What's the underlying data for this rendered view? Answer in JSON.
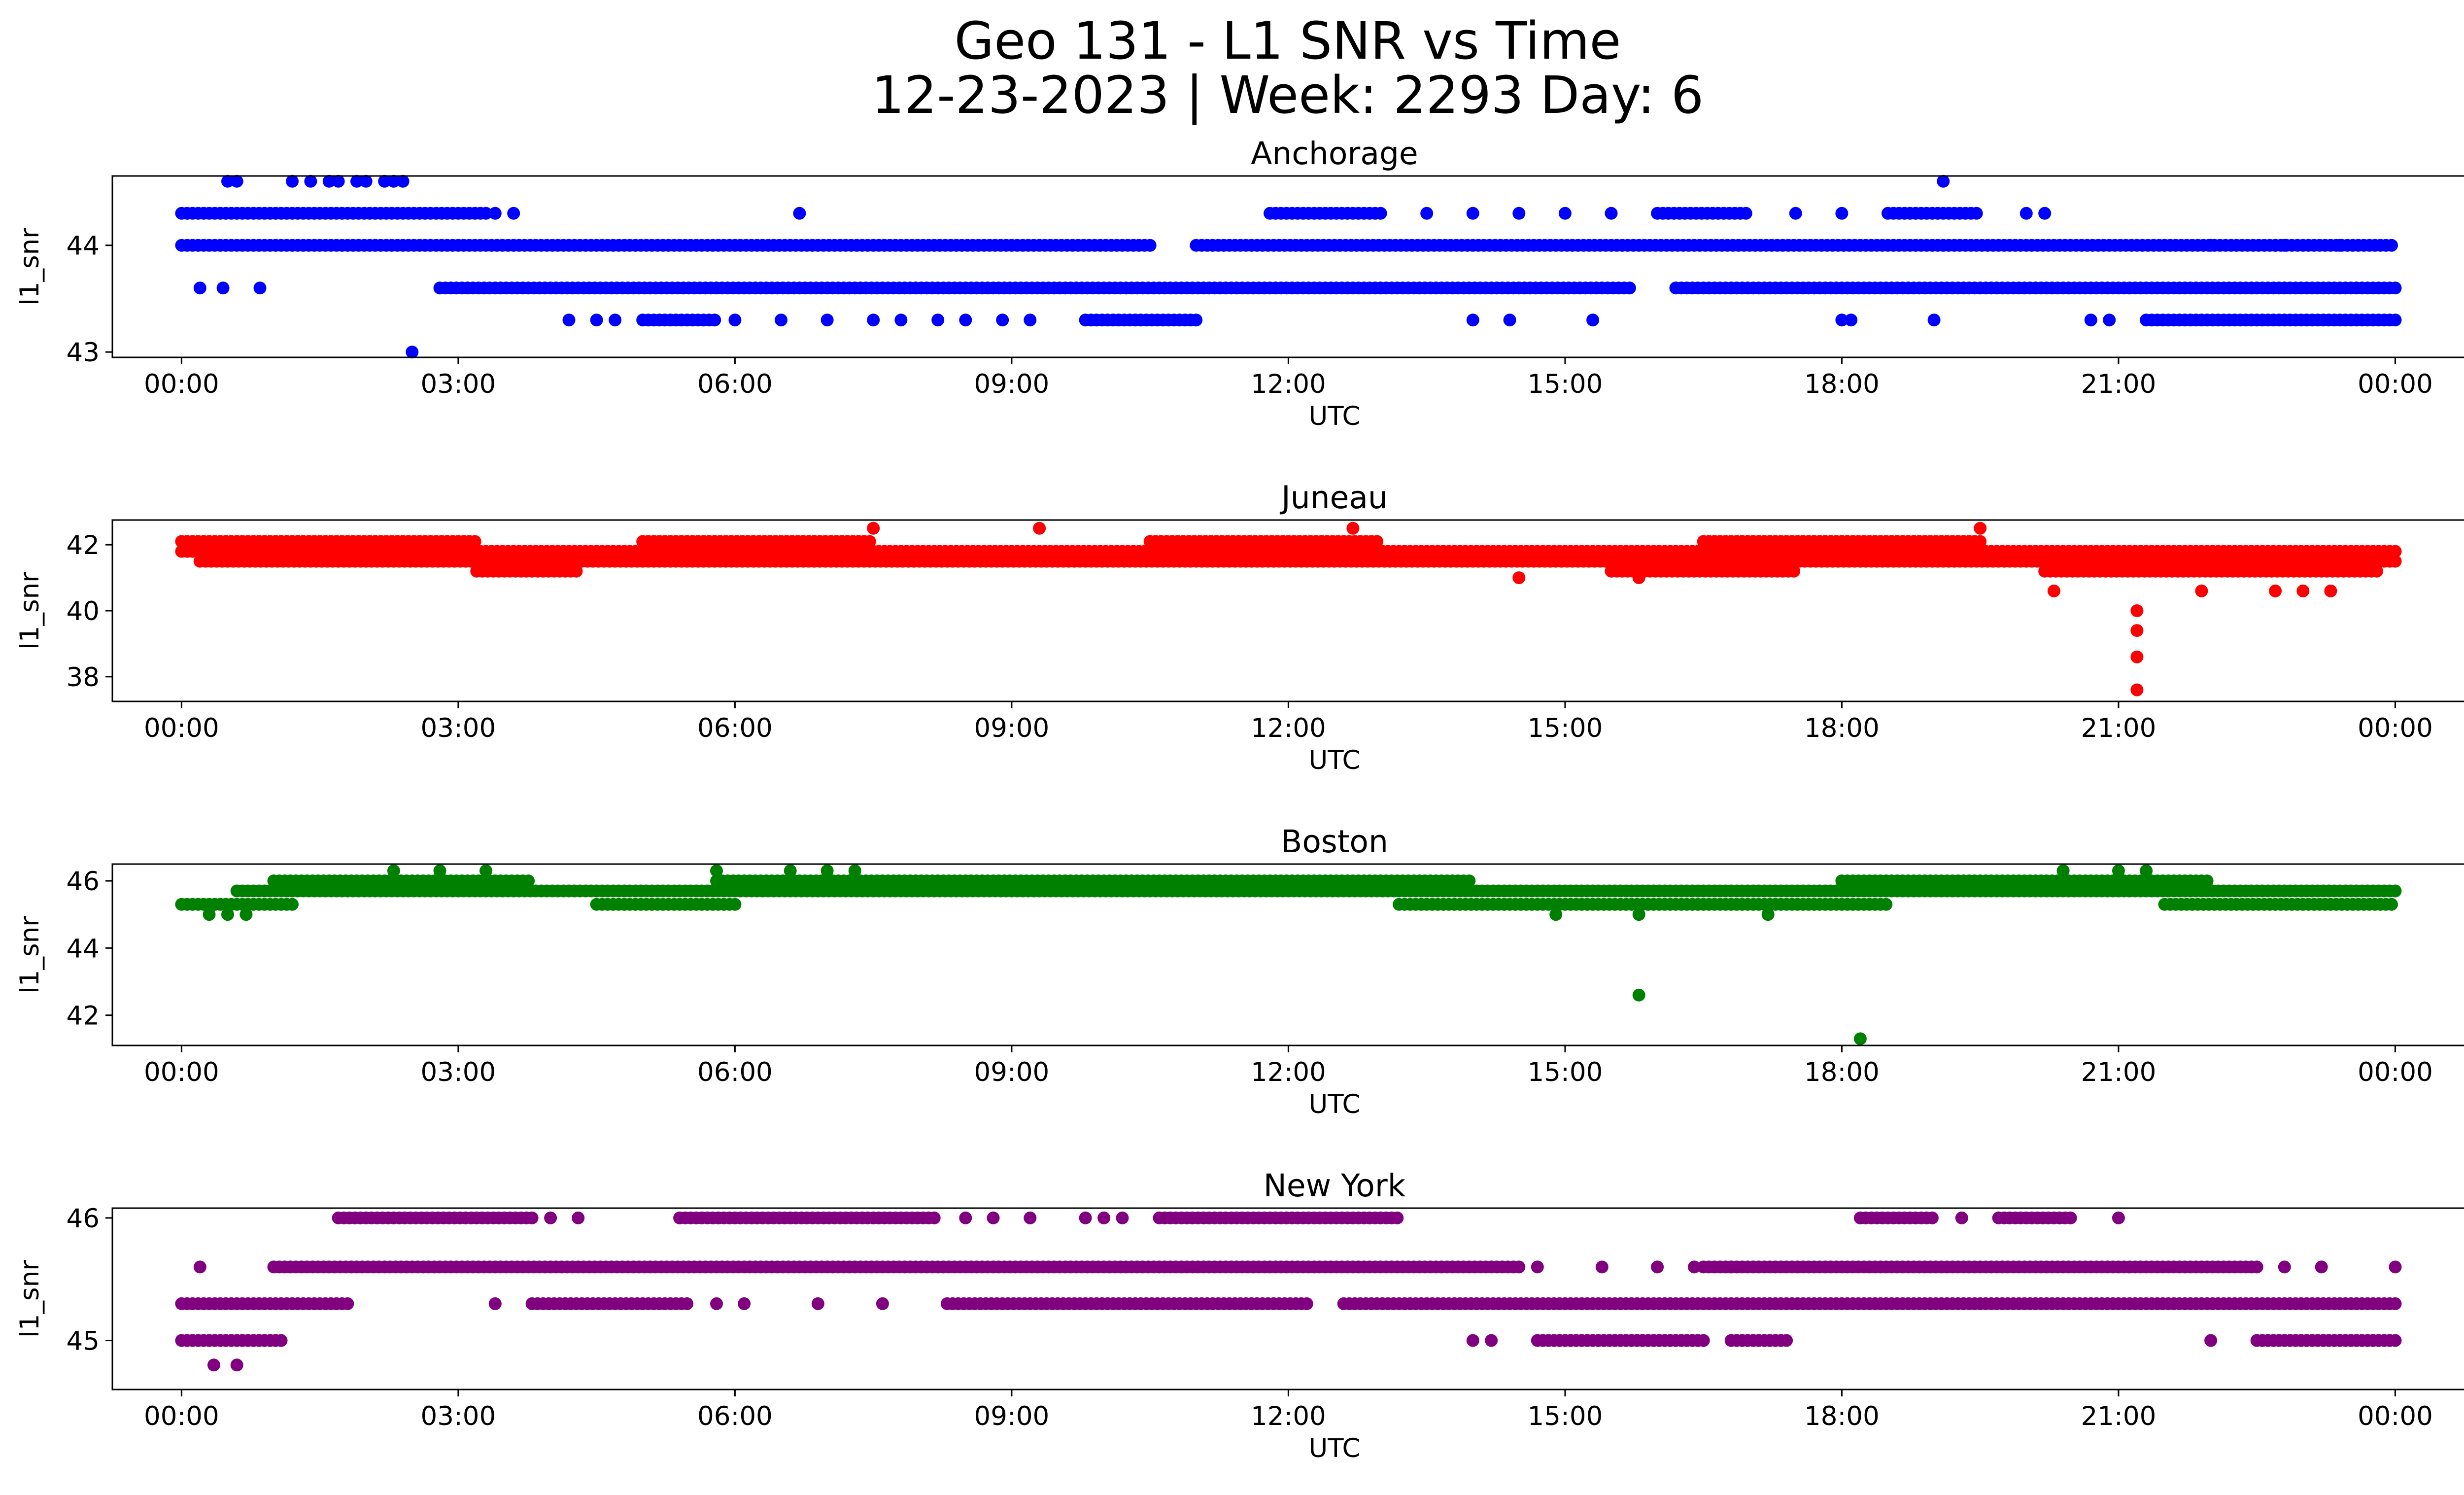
{
  "title": {
    "line1": "Geo 131 - L1 SNR vs Time",
    "line2": "12-23-2023 | Week: 2293 Day: 6"
  },
  "chart_data": [
    {
      "type": "scatter",
      "title": "Anchorage",
      "xlabel": "UTC",
      "ylabel": "l1_snr",
      "color": "#0000ff",
      "xlim": [
        -0.75,
        25.75
      ],
      "ylim": [
        42.95,
        44.65
      ],
      "xticks": [
        "00:00",
        "03:00",
        "06:00",
        "09:00",
        "12:00",
        "15:00",
        "18:00",
        "21:00",
        "00:00"
      ],
      "yticks": [
        43,
        44
      ],
      "bands": [
        {
          "y": 44.0,
          "x": [
            [
              0.0,
              10.5
            ],
            [
              11.0,
              24.0
            ]
          ]
        },
        {
          "y": 43.6,
          "x": [
            [
              2.8,
              15.7
            ],
            [
              16.2,
              24.0
            ]
          ]
        },
        {
          "y": 44.3,
          "x": [
            [
              0.0,
              3.3
            ],
            [
              11.8,
              13.0
            ],
            [
              16.0,
              17.0
            ],
            [
              18.5,
              19.5
            ]
          ]
        },
        {
          "y": 43.3,
          "x": [
            [
              5.0,
              5.8
            ],
            [
              9.8,
              11.0
            ],
            [
              21.3,
              24.0
            ]
          ]
        }
      ],
      "points": [
        [
          0.5,
          44.6
        ],
        [
          0.6,
          44.6
        ],
        [
          1.2,
          44.6
        ],
        [
          1.4,
          44.6
        ],
        [
          1.6,
          44.6
        ],
        [
          1.7,
          44.6
        ],
        [
          1.9,
          44.6
        ],
        [
          2.0,
          44.6
        ],
        [
          2.2,
          44.6
        ],
        [
          2.3,
          44.6
        ],
        [
          2.4,
          44.6
        ],
        [
          19.1,
          44.6
        ],
        [
          2.5,
          43.0
        ],
        [
          0.2,
          43.6
        ],
        [
          0.45,
          43.6
        ],
        [
          0.85,
          43.6
        ],
        [
          3.4,
          44.3
        ],
        [
          3.6,
          44.3
        ],
        [
          6.7,
          44.3
        ],
        [
          13.5,
          44.3
        ],
        [
          14.0,
          44.3
        ],
        [
          14.5,
          44.3
        ],
        [
          15.0,
          44.3
        ],
        [
          15.5,
          44.3
        ],
        [
          17.5,
          44.3
        ],
        [
          18.0,
          44.3
        ],
        [
          20.0,
          44.3
        ],
        [
          20.2,
          44.3
        ],
        [
          4.2,
          43.3
        ],
        [
          4.5,
          43.3
        ],
        [
          4.7,
          43.3
        ],
        [
          6.0,
          43.3
        ],
        [
          6.5,
          43.3
        ],
        [
          7.0,
          43.3
        ],
        [
          7.5,
          43.3
        ],
        [
          7.8,
          43.3
        ],
        [
          8.2,
          43.3
        ],
        [
          8.5,
          43.3
        ],
        [
          8.9,
          43.3
        ],
        [
          9.2,
          43.3
        ],
        [
          14.0,
          43.3
        ],
        [
          14.4,
          43.3
        ],
        [
          15.3,
          43.3
        ],
        [
          18.0,
          43.3
        ],
        [
          18.1,
          43.3
        ],
        [
          19.0,
          43.3
        ],
        [
          20.7,
          43.3
        ],
        [
          20.9,
          43.3
        ],
        [
          21.5,
          44.0
        ],
        [
          22.0,
          44.0
        ],
        [
          22.7,
          44.0
        ],
        [
          22.8,
          44.0
        ],
        [
          23.4,
          44.0
        ]
      ]
    },
    {
      "type": "scatter",
      "title": "Juneau",
      "xlabel": "UTC",
      "ylabel": "l1_snr",
      "color": "#ff0000",
      "xlim": [
        -0.75,
        25.75
      ],
      "ylim": [
        37.25,
        42.75
      ],
      "xticks": [
        "00:00",
        "03:00",
        "06:00",
        "09:00",
        "12:00",
        "15:00",
        "18:00",
        "21:00",
        "00:00"
      ],
      "yticks": [
        38,
        40,
        42
      ],
      "bands": [
        {
          "y": 42.1,
          "x": [
            [
              0.0,
              3.2
            ],
            [
              5.0,
              7.5
            ],
            [
              10.5,
              13.0
            ],
            [
              16.5,
              19.5
            ]
          ]
        },
        {
          "y": 41.8,
          "x": [
            [
              0.0,
              24.0
            ]
          ]
        },
        {
          "y": 41.5,
          "x": [
            [
              0.2,
              21.0
            ],
            [
              21.0,
              24.0
            ]
          ]
        },
        {
          "y": 41.2,
          "x": [
            [
              3.2,
              4.3
            ],
            [
              15.5,
              17.5
            ],
            [
              20.2,
              23.8
            ]
          ]
        }
      ],
      "points": [
        [
          7.5,
          42.5
        ],
        [
          9.3,
          42.5
        ],
        [
          12.7,
          42.5
        ],
        [
          19.5,
          42.5
        ],
        [
          20.3,
          40.6
        ],
        [
          21.9,
          40.6
        ],
        [
          22.7,
          40.6
        ],
        [
          23.0,
          40.6
        ],
        [
          23.3,
          40.6
        ],
        [
          14.5,
          41.0
        ],
        [
          15.8,
          41.0
        ],
        [
          21.2,
          40.0
        ],
        [
          21.2,
          39.4
        ],
        [
          21.2,
          38.6
        ],
        [
          21.2,
          37.6
        ]
      ]
    },
    {
      "type": "scatter",
      "title": "Boston",
      "xlabel": "UTC",
      "ylabel": "l1_snr",
      "color": "#008000",
      "xlim": [
        -0.75,
        25.75
      ],
      "ylim": [
        41.1,
        46.5
      ],
      "xticks": [
        "00:00",
        "03:00",
        "06:00",
        "09:00",
        "12:00",
        "15:00",
        "18:00",
        "21:00",
        "00:00"
      ],
      "yticks": [
        42,
        44,
        46
      ],
      "bands": [
        {
          "y": 46.0,
          "x": [
            [
              1.0,
              3.8
            ],
            [
              5.8,
              14.0
            ],
            [
              18.0,
              22.0
            ]
          ]
        },
        {
          "y": 45.7,
          "x": [
            [
              0.6,
              24.0
            ]
          ]
        },
        {
          "y": 45.3,
          "x": [
            [
              0.0,
              1.2
            ],
            [
              4.5,
              6.0
            ],
            [
              13.2,
              18.5
            ],
            [
              21.5,
              24.0
            ]
          ]
        }
      ],
      "points": [
        [
          2.3,
          46.3
        ],
        [
          2.8,
          46.3
        ],
        [
          3.3,
          46.3
        ],
        [
          5.8,
          46.3
        ],
        [
          6.6,
          46.3
        ],
        [
          7.0,
          46.3
        ],
        [
          7.3,
          46.3
        ],
        [
          20.4,
          46.3
        ],
        [
          21.0,
          46.3
        ],
        [
          21.3,
          46.3
        ],
        [
          0.3,
          45.0
        ],
        [
          0.5,
          45.0
        ],
        [
          0.7,
          45.0
        ],
        [
          14.9,
          45.0
        ],
        [
          15.8,
          45.0
        ],
        [
          17.2,
          45.0
        ],
        [
          15.8,
          42.6
        ],
        [
          18.2,
          41.3
        ]
      ]
    },
    {
      "type": "scatter",
      "title": "New York",
      "xlabel": "UTC",
      "ylabel": "l1_snr",
      "color": "#800080",
      "xlim": [
        -0.75,
        25.75
      ],
      "ylim": [
        44.6,
        46.08
      ],
      "xticks": [
        "00:00",
        "03:00",
        "06:00",
        "09:00",
        "12:00",
        "15:00",
        "18:00",
        "21:00",
        "00:00"
      ],
      "yticks": [
        45,
        46
      ],
      "bands": [
        {
          "y": 46.0,
          "x": [
            [
              1.7,
              3.8
            ],
            [
              5.4,
              8.2
            ],
            [
              10.6,
              13.2
            ],
            [
              18.2,
              19.0
            ],
            [
              19.7,
              20.5
            ]
          ]
        },
        {
          "y": 45.6,
          "x": [
            [
              1.0,
              14.5
            ],
            [
              16.5,
              22.5
            ]
          ]
        },
        {
          "y": 45.3,
          "x": [
            [
              0.0,
              1.8
            ],
            [
              3.8,
              5.5
            ],
            [
              8.3,
              12.2
            ],
            [
              12.6,
              24.0
            ]
          ]
        },
        {
          "y": 45.0,
          "x": [
            [
              0.0,
              1.1
            ],
            [
              14.7,
              16.5
            ],
            [
              16.8,
              17.4
            ],
            [
              22.5,
              24.0
            ]
          ]
        }
      ],
      "points": [
        [
          0.2,
          45.6
        ],
        [
          24.0,
          45.6
        ],
        [
          14.7,
          45.6
        ],
        [
          15.4,
          45.6
        ],
        [
          16.0,
          45.6
        ],
        [
          16.4,
          45.6
        ],
        [
          16.8,
          45.6
        ],
        [
          22.8,
          45.6
        ],
        [
          23.2,
          45.6
        ],
        [
          0.35,
          44.8
        ],
        [
          0.6,
          44.8
        ],
        [
          3.4,
          45.3
        ],
        [
          5.8,
          45.3
        ],
        [
          6.1,
          45.3
        ],
        [
          6.9,
          45.3
        ],
        [
          7.6,
          45.3
        ],
        [
          4.0,
          46.0
        ],
        [
          4.3,
          46.0
        ],
        [
          8.5,
          46.0
        ],
        [
          8.8,
          46.0
        ],
        [
          9.2,
          46.0
        ],
        [
          9.8,
          46.0
        ],
        [
          10.0,
          46.0
        ],
        [
          10.2,
          46.0
        ],
        [
          19.3,
          46.0
        ],
        [
          21.0,
          46.0
        ],
        [
          14.0,
          45.0
        ],
        [
          14.2,
          45.0
        ],
        [
          22.0,
          45.0
        ]
      ]
    }
  ]
}
